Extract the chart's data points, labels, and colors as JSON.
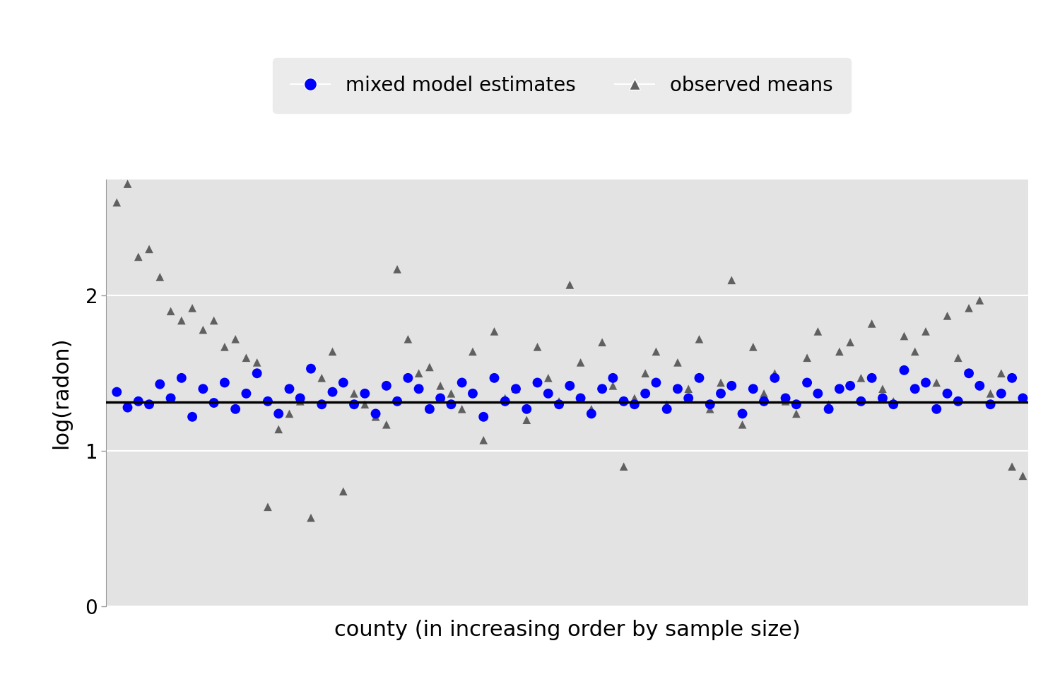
{
  "title": "",
  "xlabel": "county (in increasing order by sample size)",
  "ylabel": "log(radon)",
  "bg_color": "#e8e8e8",
  "plot_bg_color": "#e3e3e3",
  "grid_color": "#ffffff",
  "hline_y": 1.313,
  "hline_color": "#000000",
  "ylim": [
    0.0,
    2.75
  ],
  "yticks": [
    0,
    1,
    2
  ],
  "n_counties": 85,
  "mixed_model_color": "#0000ff",
  "observed_color": "#606060",
  "mixed_model_marker": "o",
  "observed_marker": "^",
  "marker_size_mixed": 100,
  "marker_size_observed": 70,
  "mixed_model_estimates": [
    1.38,
    1.28,
    1.32,
    1.3,
    1.43,
    1.34,
    1.47,
    1.22,
    1.4,
    1.31,
    1.44,
    1.27,
    1.37,
    1.5,
    1.32,
    1.24,
    1.4,
    1.34,
    1.53,
    1.3,
    1.38,
    1.44,
    1.3,
    1.37,
    1.24,
    1.42,
    1.32,
    1.47,
    1.4,
    1.27,
    1.34,
    1.3,
    1.44,
    1.37,
    1.22,
    1.47,
    1.32,
    1.4,
    1.27,
    1.44,
    1.37,
    1.3,
    1.42,
    1.34,
    1.24,
    1.4,
    1.47,
    1.32,
    1.3,
    1.37,
    1.44,
    1.27,
    1.4,
    1.34,
    1.47,
    1.3,
    1.37,
    1.42,
    1.24,
    1.4,
    1.32,
    1.47,
    1.34,
    1.3,
    1.44,
    1.37,
    1.27,
    1.4,
    1.42,
    1.32,
    1.47,
    1.34,
    1.3,
    1.52,
    1.4,
    1.44,
    1.27,
    1.37,
    1.32,
    1.5,
    1.42,
    1.3,
    1.37,
    1.47,
    1.34
  ],
  "observed_means": [
    2.6,
    2.72,
    2.25,
    2.3,
    2.12,
    1.9,
    1.84,
    1.92,
    1.78,
    1.84,
    1.67,
    1.72,
    1.6,
    1.57,
    0.64,
    1.14,
    1.24,
    1.32,
    0.57,
    1.47,
    1.64,
    0.74,
    1.37,
    1.3,
    1.22,
    1.17,
    2.17,
    1.72,
    1.5,
    1.54,
    1.42,
    1.37,
    1.27,
    1.64,
    1.07,
    1.77,
    1.34,
    1.4,
    1.2,
    1.67,
    1.47,
    1.32,
    2.07,
    1.57,
    1.27,
    1.7,
    1.42,
    0.9,
    1.34,
    1.5,
    1.64,
    1.3,
    1.57,
    1.4,
    1.72,
    1.27,
    1.44,
    2.1,
    1.17,
    1.67,
    1.37,
    1.5,
    1.32,
    1.24,
    1.6,
    1.77,
    1.3,
    1.64,
    1.7,
    1.47,
    1.82,
    1.4,
    1.32,
    1.74,
    1.64,
    1.77,
    1.44,
    1.87,
    1.6,
    1.92,
    1.97,
    1.37,
    1.5,
    0.9,
    0.84
  ],
  "legend_fontsize": 20,
  "axis_fontsize": 22,
  "tick_fontsize": 20,
  "fig_width": 15.0,
  "fig_height": 9.75
}
